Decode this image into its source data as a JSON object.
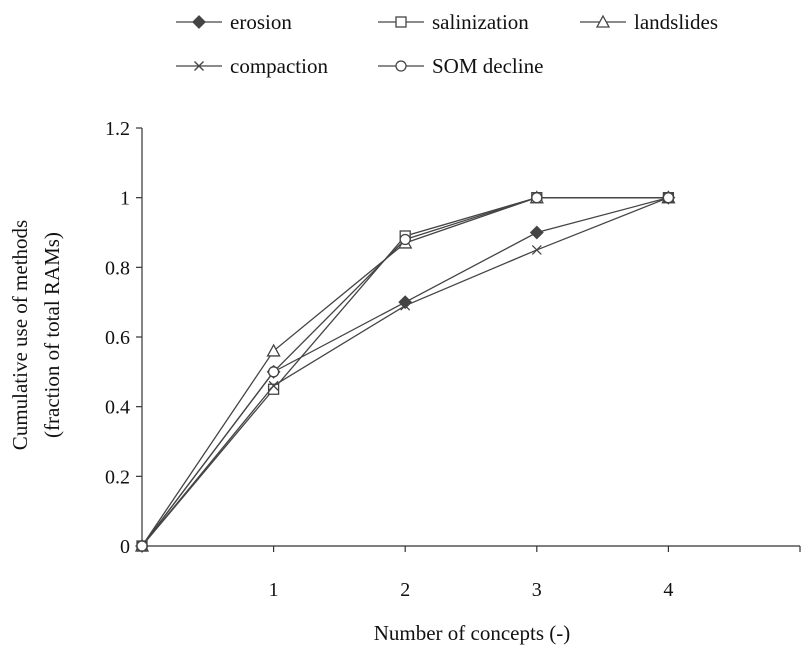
{
  "chart_data": {
    "type": "line",
    "xlabel": "Number of concepts (-)",
    "ylabel_lines": [
      "Cumulative use of methods",
      "(fraction of total RAMs)"
    ],
    "x_ticks": [
      "1",
      "2",
      "3",
      "4"
    ],
    "y_ticks": [
      "0",
      "0.2",
      "0.4",
      "0.6",
      "0.8",
      "1",
      "1.2"
    ],
    "xlim": [
      0,
      5
    ],
    "ylim": [
      0,
      1.2
    ],
    "grid": false,
    "legend_position": "top",
    "line_color": "#444444",
    "series": [
      {
        "name": "erosion",
        "marker": "diamond",
        "x": [
          0,
          1,
          2,
          3,
          4
        ],
        "values": [
          0,
          0.5,
          0.7,
          0.9,
          1.0
        ]
      },
      {
        "name": "salinization",
        "marker": "square",
        "x": [
          0,
          1,
          2,
          3,
          4
        ],
        "values": [
          0,
          0.45,
          0.89,
          1.0,
          1.0
        ]
      },
      {
        "name": "landslides",
        "marker": "triangle",
        "x": [
          0,
          1,
          2,
          3,
          4
        ],
        "values": [
          0,
          0.56,
          0.87,
          1.0,
          1.0
        ]
      },
      {
        "name": "compaction",
        "marker": "x",
        "x": [
          0,
          1,
          2,
          3,
          4
        ],
        "values": [
          0,
          0.46,
          0.69,
          0.85,
          1.0
        ]
      },
      {
        "name": "SOM decline",
        "marker": "circle",
        "x": [
          0,
          1,
          2,
          3,
          4
        ],
        "values": [
          0,
          0.5,
          0.88,
          1.0,
          1.0
        ]
      }
    ]
  }
}
